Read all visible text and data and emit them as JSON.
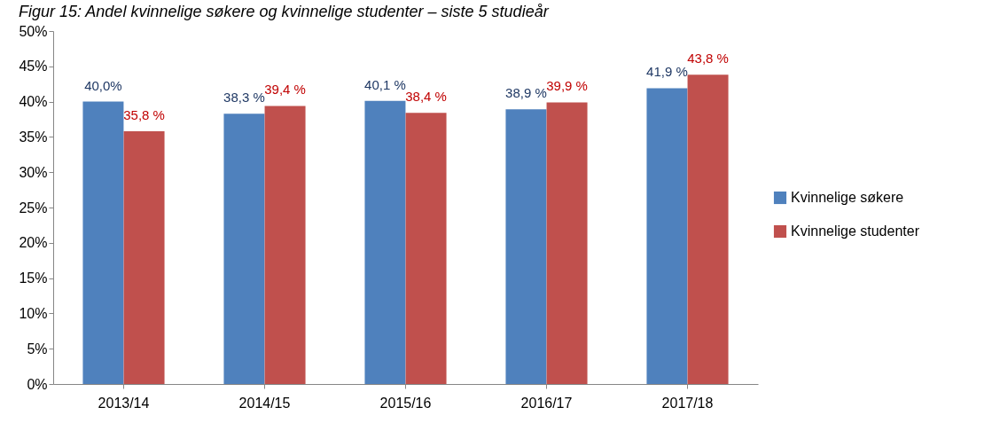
{
  "chart_data": {
    "type": "bar",
    "title": "Figur 15: Andel kvinnelige søkere og kvinnelige studenter – siste 5 studieår",
    "categories": [
      "2013/14",
      "2014/15",
      "2015/16",
      "2016/17",
      "2017/18"
    ],
    "series": [
      {
        "name": "Kvinnelige søkere",
        "color": "#4f81bd",
        "values": [
          40.0,
          38.3,
          40.1,
          38.9,
          41.9
        ],
        "value_labels": [
          "40,0%",
          "38,3 %",
          "40,1 %",
          "38,9 %",
          "41,9 %"
        ]
      },
      {
        "name": "Kvinnelige studenter",
        "color": "#c0504d",
        "values": [
          35.8,
          39.4,
          38.4,
          39.9,
          43.8
        ],
        "value_labels": [
          "35,8 %",
          "39,4 %",
          "38,4 %",
          "39,9 %",
          "43,8 %"
        ]
      }
    ],
    "ylim": [
      0,
      50
    ],
    "yticks": [
      {
        "value": 0,
        "label": "0%"
      },
      {
        "value": 5,
        "label": "5%"
      },
      {
        "value": 10,
        "label": "10%"
      },
      {
        "value": 15,
        "label": "15%"
      },
      {
        "value": 20,
        "label": "20%"
      },
      {
        "value": 25,
        "label": "25%"
      },
      {
        "value": 30,
        "label": "30%"
      },
      {
        "value": 35,
        "label": "35%"
      },
      {
        "value": 40,
        "label": "40%"
      },
      {
        "value": 45,
        "label": "45%"
      },
      {
        "value": 50,
        "label": "50%"
      }
    ],
    "grid": false,
    "legend": "right"
  }
}
